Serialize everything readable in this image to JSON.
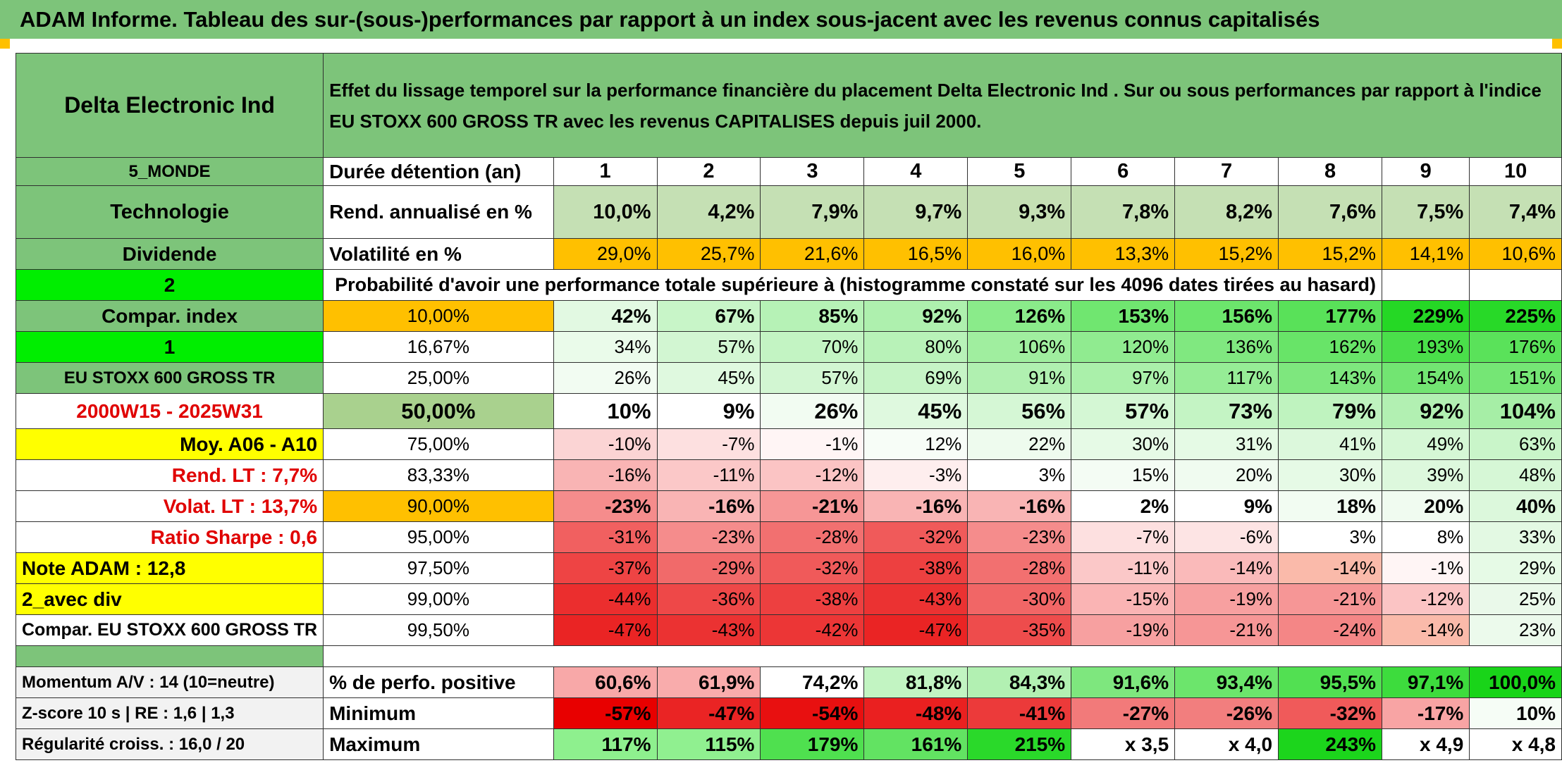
{
  "title": "ADAM Informe. Tableau des sur-(sous-)performances par rapport à un index sous-jacent avec les revenus connus capitalisés",
  "header": {
    "asset_name": "Delta Electronic Ind",
    "description": "Effet du lissage temporel sur la performance financière du placement Delta Electronic Ind . Sur ou sous performances par rapport à l'indice EU STOXX 600 GROSS TR avec les revenus CAPITALISES depuis juil 2000."
  },
  "info": {
    "region": "5_MONDE",
    "sector": "Technologie",
    "dividend_label": "Dividende",
    "value_2": "2",
    "compar_index_label": "Compar. index",
    "value_1": "1",
    "index_name": "EU STOXX 600 GROSS TR",
    "period": "2000W15 - 2025W31",
    "average": "Moy. A06 - A10",
    "rend_lt": "Rend. LT :   7,7%",
    "volat_lt": "Volat. LT :   13,7%",
    "sharpe": "Ratio Sharpe :    0,6",
    "note_adam": "Note ADAM : 12,8",
    "variant": "2_avec div",
    "compar_full": "Compar. EU STOXX 600 GROSS TR",
    "momentum": "Momentum A/V : 14 (10=neutre)",
    "zscore": "Z-score 10 s | RE : 1,6 | 1,3",
    "regularite": "Régularité croiss. : 16,0 / 20"
  },
  "labels": {
    "duration": "Durée détention (an)",
    "rend": "Rend. annualisé en %",
    "volat": "Volatilité en %",
    "proba": "Probabilité d'avoir une performance totale supérieure à (histogramme constaté sur les 4096 dates tirées au hasard)",
    "pct_positive": "% de perfo. positive",
    "minimum": "Minimum",
    "maximum": "Maximum"
  },
  "years": [
    "1",
    "2",
    "3",
    "4",
    "5",
    "6",
    "7",
    "8",
    "9",
    "10"
  ],
  "rend": [
    "10,0%",
    "4,2%",
    "7,9%",
    "9,7%",
    "9,3%",
    "7,8%",
    "8,2%",
    "7,6%",
    "7,5%",
    "7,4%"
  ],
  "volat": [
    "29,0%",
    "25,7%",
    "21,6%",
    "16,5%",
    "16,0%",
    "13,3%",
    "15,2%",
    "15,2%",
    "14,1%",
    "10,6%"
  ],
  "rend_colors": [
    "#c5e0b4",
    "#c5e0b4",
    "#c5e0b4",
    "#c5e0b4",
    "#c5e0b4",
    "#c5e0b4",
    "#c5e0b4",
    "#c5e0b4",
    "#c5e0b4",
    "#c5e0b4"
  ],
  "volat_colors": [
    "#ffc000",
    "#ffc000",
    "#ffc000",
    "#ffc000",
    "#ffc000",
    "#ffc000",
    "#ffc000",
    "#ffc000",
    "#ffc000",
    "#ffc000"
  ],
  "quantile_rows": [
    {
      "q": "10,00%",
      "vals": [
        "42%",
        "67%",
        "85%",
        "92%",
        "126%",
        "153%",
        "156%",
        "177%",
        "229%",
        "225%"
      ],
      "colors": [
        "#e2f9e2",
        "#c8f5c8",
        "#b6f2b6",
        "#aef0ae",
        "#8aeb8a",
        "#70e670",
        "#6ce56c",
        "#59e159",
        "#25d825",
        "#28d928"
      ]
    },
    {
      "q": "16,67%",
      "vals": [
        "34%",
        "57%",
        "70%",
        "80%",
        "106%",
        "120%",
        "136%",
        "162%",
        "193%",
        "176%"
      ],
      "colors": [
        "#eafbea",
        "#d2f6d2",
        "#c3f4c3",
        "#b8f2b8",
        "#a0ee9f",
        "#90eb90",
        "#80e880",
        "#68e468",
        "#4adf4a",
        "#5ae25a"
      ]
    },
    {
      "q": "25,00%",
      "vals": [
        "26%",
        "45%",
        "57%",
        "69%",
        "91%",
        "97%",
        "117%",
        "143%",
        "154%",
        "151%"
      ],
      "colors": [
        "#f2fcf2",
        "#dff9df",
        "#d2f6d2",
        "#c6f4c6",
        "#b0f0b0",
        "#aaf0aa",
        "#96ec96",
        "#7ee77e",
        "#72e572",
        "#75e675"
      ]
    },
    {
      "q": "50,00%",
      "vals": [
        "10%",
        "9%",
        "26%",
        "45%",
        "56%",
        "57%",
        "73%",
        "79%",
        "92%",
        "104%"
      ],
      "colors": [
        "#ffffff",
        "#ffffff",
        "#f2fcf2",
        "#dff9df",
        "#d5f7d5",
        "#d4f7d4",
        "#c4f4c4",
        "#bff3bf",
        "#b2f0b2",
        "#a6ee a6"
      ]
    },
    {
      "q": "75,00%",
      "vals": [
        "-10%",
        "-7%",
        "-1%",
        "12%",
        "22%",
        "30%",
        "31%",
        "41%",
        "49%",
        "63%"
      ],
      "colors": [
        "#fbd4d4",
        "#fde0e0",
        "#fff5f5",
        "#f7fdf7",
        "#eefbee",
        "#e6fae6",
        "#e5fae5",
        "#dcf8dc",
        "#d5f7d5",
        "#c9f5c9"
      ]
    },
    {
      "q": "83,33%",
      "vals": [
        "-16%",
        "-11%",
        "-12%",
        "-3%",
        "3%",
        "15%",
        "20%",
        "30%",
        "39%",
        "48%"
      ],
      "colors": [
        "#f9b4b4",
        "#fbc8c8",
        "#fbc4c4",
        "#feeeee",
        "#ffffff",
        "#f4fcf4",
        "#f0fbf0",
        "#e6fae6",
        "#ddf8dd",
        "#d6f7d6"
      ]
    },
    {
      "q": "90,00%",
      "vals": [
        "-23%",
        "-16%",
        "-21%",
        "-16%",
        "-16%",
        "2%",
        "9%",
        "18%",
        "20%",
        "40%"
      ],
      "colors": [
        "#f58c8c",
        "#f9b4b4",
        "#f69696",
        "#f9b4b4",
        "#f9b4b4",
        "#ffffff",
        "#ffffff",
        "#f2fcf2",
        "#f0fbf0",
        "#dcf8dc"
      ]
    },
    {
      "q": "95,00%",
      "vals": [
        "-31%",
        "-23%",
        "-28%",
        "-32%",
        "-23%",
        "-7%",
        "-6%",
        "3%",
        "8%",
        "33%"
      ],
      "colors": [
        "#f16060",
        "#f58c8c",
        "#f27070",
        "#f05a5a",
        "#f58c8c",
        "#fde0e0",
        "#fde4e4",
        "#ffffff",
        "#ffffff",
        "#e3f9e3"
      ]
    },
    {
      "q": "97,50%",
      "vals": [
        "-37%",
        "-29%",
        "-32%",
        "-38%",
        "-28%",
        "-11%",
        "-14%",
        "-14%",
        "-1%",
        "29%"
      ],
      "colors": [
        "#ee4444",
        "#f16a6a",
        "#f05a5a",
        "#ed4040",
        "#f27070",
        "#fbc8c8",
        "#faba ba",
        "#fabaaa",
        "#fff5f5",
        "#e6fae6"
      ]
    },
    {
      "q": "99,00%",
      "vals": [
        "-44%",
        "-36%",
        "-38%",
        "-43%",
        "-30%",
        "-15%",
        "-19%",
        "-21%",
        "-12%",
        "25%"
      ],
      "colors": [
        "#eb2e2e",
        "#ee4848",
        "#ed4040",
        "#eb3232",
        "#f16666",
        "#fab4b4",
        "#f7a0a0",
        "#f69696",
        "#fbc4c4",
        "#eaf9ea"
      ]
    },
    {
      "q": "99,50%",
      "vals": [
        "-47%",
        "-43%",
        "-42%",
        "-47%",
        "-35%",
        "-19%",
        "-21%",
        "-24%",
        "-14%",
        "23%"
      ],
      "colors": [
        "#ea2424",
        "#eb3232",
        "#ec3636",
        "#ea2424",
        "#ee4c4c",
        "#f7a0a0",
        "#f69696",
        "#f48686",
        "#fabaaa",
        "#ecfaec"
      ]
    }
  ],
  "pct_positive": [
    "60,6%",
    "61,9%",
    "74,2%",
    "81,8%",
    "84,3%",
    "91,6%",
    "93,4%",
    "95,5%",
    "97,1%",
    "100,0%"
  ],
  "pct_positive_colors": [
    "#f8a8a8",
    "#f9acac",
    "#ffffff",
    "#c2f4c2",
    "#b2f0b2",
    "#7ee77e",
    "#6ce56c",
    "#52e052",
    "#3ddc3d",
    "#19d419"
  ],
  "minimum": [
    "-57%",
    "-47%",
    "-54%",
    "-48%",
    "-41%",
    "-27%",
    "-26%",
    "-32%",
    "-17%",
    "10%"
  ],
  "minimum_colors": [
    "#e80000",
    "#ea2424",
    "#e81010",
    "#ea2020",
    "#ec3a3a",
    "#f27a7a",
    "#f27e7e",
    "#f05a5a",
    "#f8a4a4",
    "#f6fdf6"
  ],
  "maximum": [
    "117%",
    "115%",
    "179%",
    "161%",
    "215%",
    "x 3,5",
    "x 4,0",
    "243%",
    "x 4,9",
    "x 4,8"
  ],
  "maximum_colors": [
    "#8ef08e",
    "#90f090",
    "#4fe04f",
    "#62e362",
    "#2ad92a",
    "#ffffff",
    "#ffffff",
    "#1cd51c",
    "#ffffff",
    "#ffffff"
  ]
}
